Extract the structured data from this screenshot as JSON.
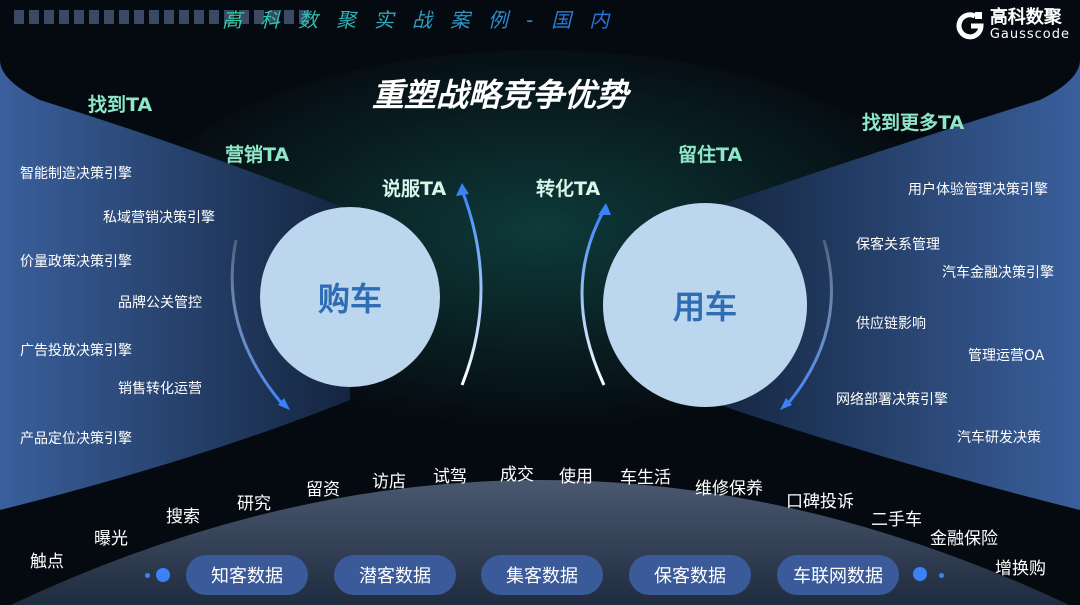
{
  "header": {
    "title": "高科数聚实战案例-国内",
    "logo_cn": "高科数聚",
    "logo_en": "Gausscode"
  },
  "main_title": "重塑战略竞争优势",
  "ta_labels": {
    "find": "找到TA",
    "market": "营销TA",
    "persuade": "说服TA",
    "convert": "转化TA",
    "retain": "留住TA",
    "find_more": "找到更多TA"
  },
  "circles": {
    "buy": "购车",
    "use": "用车"
  },
  "left_items": [
    "智能制造决策引擎",
    "私域营销决策引擎",
    "价量政策决策引擎",
    "品牌公关管控",
    "广告投放决策引擎",
    "销售转化运营",
    "产品定位决策引擎"
  ],
  "right_items": [
    "用户体验管理决策引擎",
    "保客关系管理",
    "汽车金融决策引擎",
    "供应链影响",
    "管理运营OA",
    "网络部署决策引擎",
    "汽车研发决策"
  ],
  "journey": [
    "触点",
    "曝光",
    "搜索",
    "研究",
    "留资",
    "访店",
    "试驾",
    "成交",
    "使用",
    "车生活",
    "维修保养",
    "口碑投诉",
    "二手车",
    "金融保险",
    "增换购"
  ],
  "data_pills": [
    "知客数据",
    "潜客数据",
    "集客数据",
    "保客数据",
    "车联网数据"
  ],
  "colors": {
    "circle": "#bcd6ee",
    "circle_text": "#2e6cb4",
    "pill": "#3a5a9a",
    "arrow": "#3b82f6"
  }
}
